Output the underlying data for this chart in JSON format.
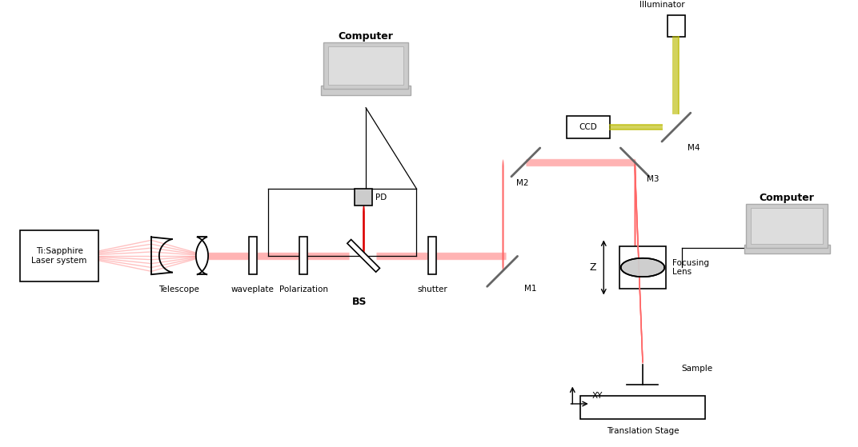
{
  "bg_color": "#ffffff",
  "beam_color": "#ff6666",
  "beam_alpha": 0.4,
  "beam_color_solid": "#dd0000",
  "yellow_color": "#bbbb00",
  "yellow_alpha": 0.7,
  "gray_light": "#cccccc",
  "gray_mid": "#aaaaaa",
  "gray_dark": "#888888",
  "line_color": "#444444",
  "mirror_color": "#777777",
  "labels": {
    "laser": "Ti:Sapphire\nLaser system",
    "telescope": "Telescope",
    "waveplate": "waveplate",
    "polarization": "Polarization",
    "bs": "BS",
    "shutter": "shutter",
    "m1": "M1",
    "m2": "M2",
    "m3": "M3",
    "m4": "M4",
    "pd": "PD",
    "computer_left": "Computer",
    "computer_right": "Computer",
    "ccd": "CCD",
    "illuminator": "Illuminator",
    "focusing_lens": "Focusing\nLens",
    "z": "Z",
    "sample": "Sample",
    "translation_stage": "Translation Stage",
    "xy": "XY"
  }
}
